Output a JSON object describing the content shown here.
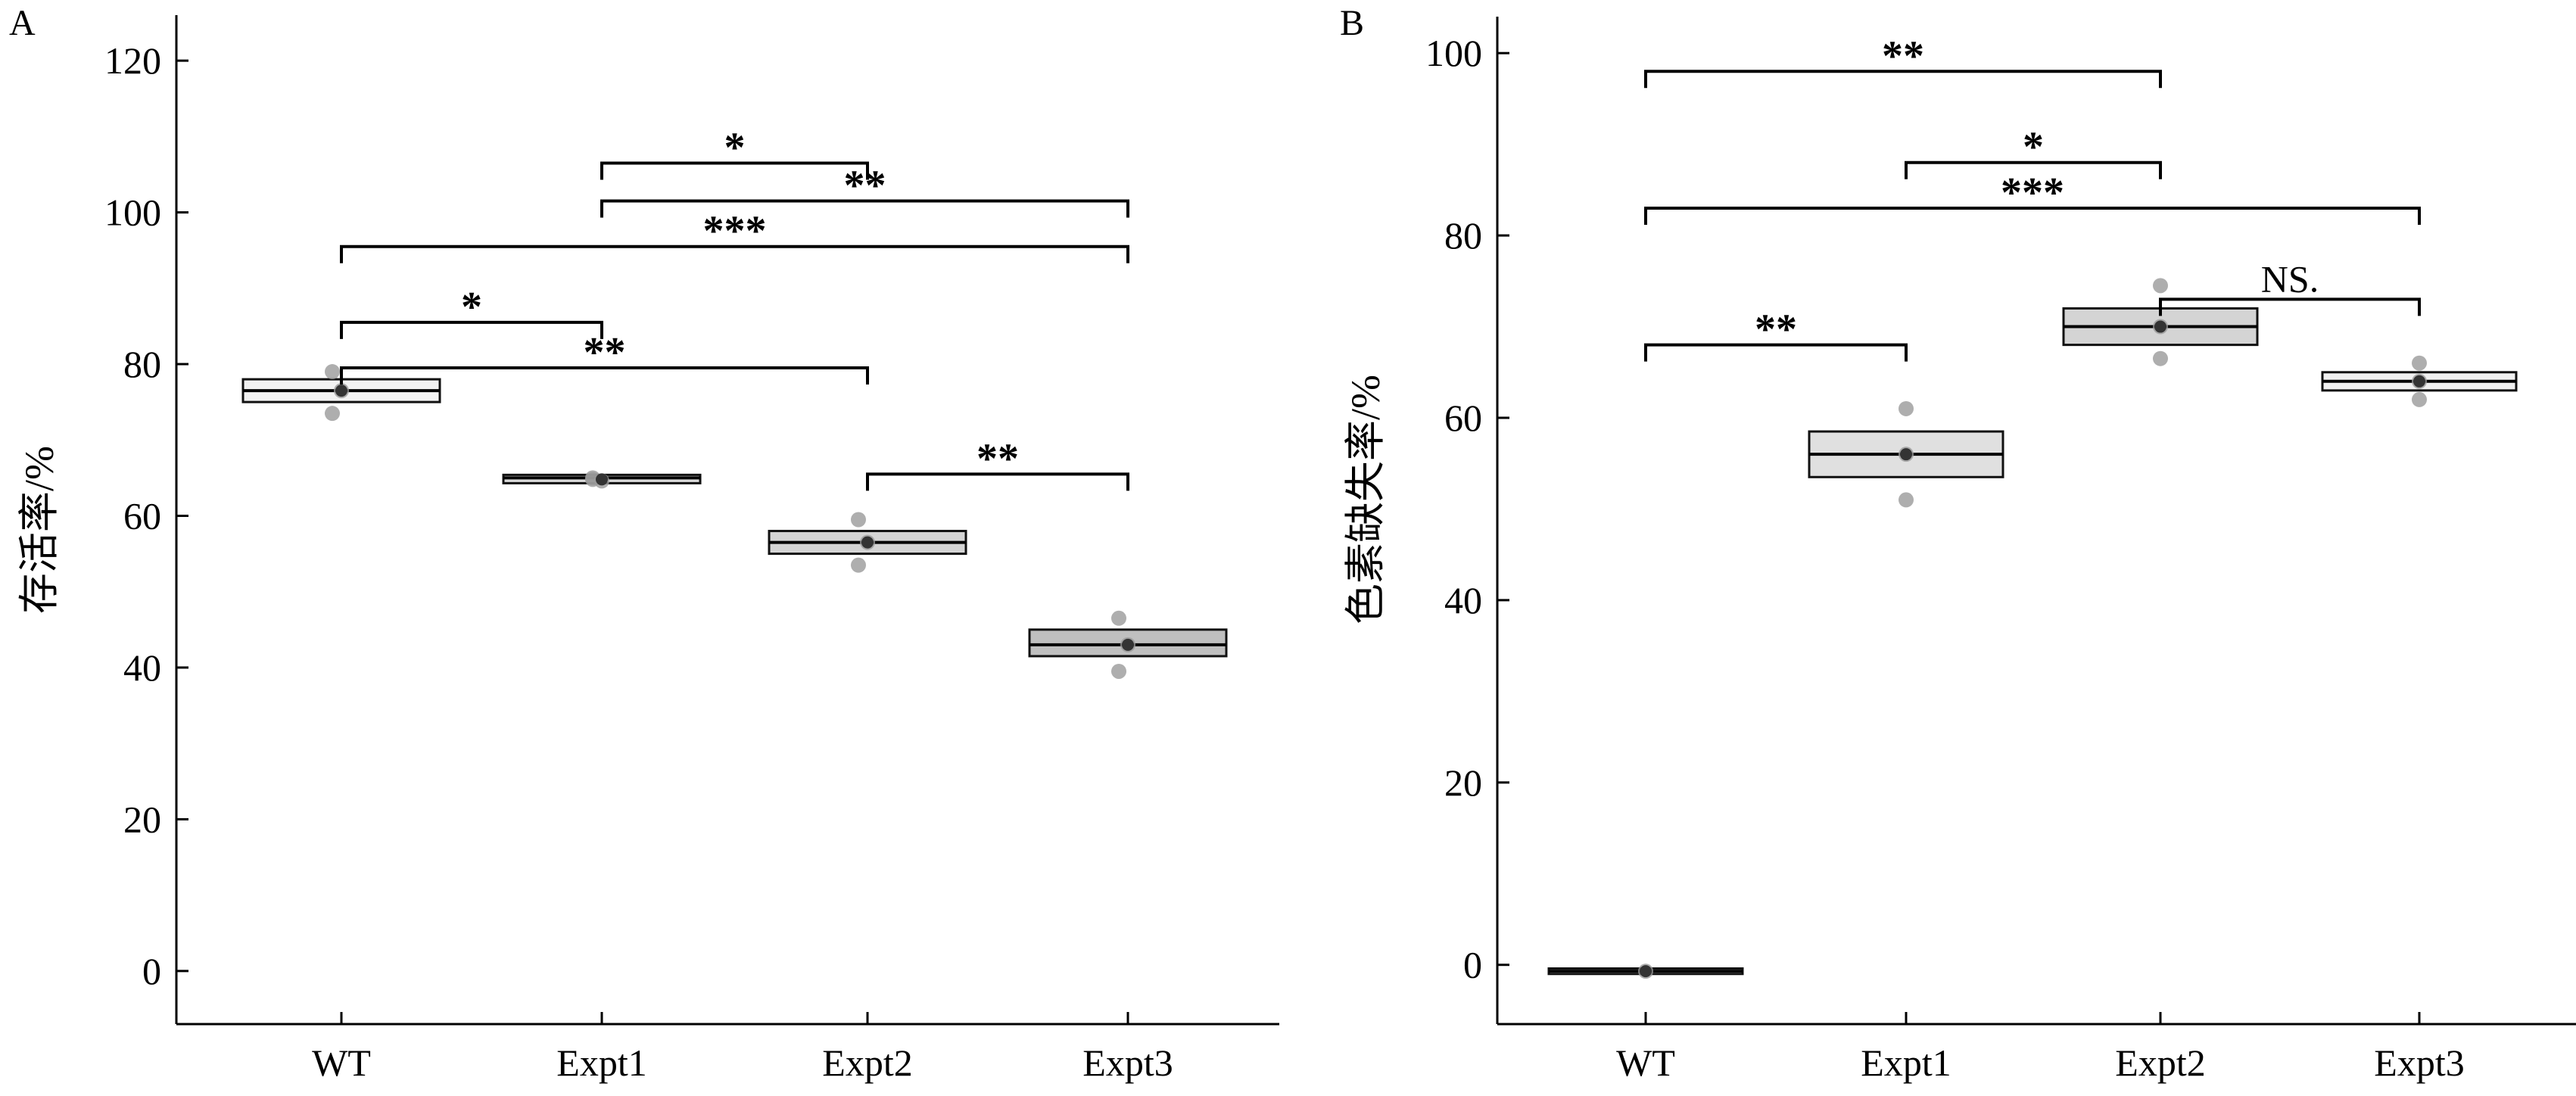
{
  "chart_data": [
    {
      "panel_label": "A",
      "type": "box",
      "ylabel": "存活率/%",
      "xlabel": "",
      "ylim": [
        -7,
        126
      ],
      "yticks": [
        0,
        20,
        40,
        60,
        80,
        100,
        120
      ],
      "categories": [
        "WT",
        "Expt1",
        "Expt2",
        "Expt3"
      ],
      "boxes": [
        {
          "category": "WT",
          "q1": 75.0,
          "median": 76.5,
          "q3": 78.0,
          "mean": 76.5,
          "points": [
            79.0,
            73.5,
            76.5
          ],
          "fill": "#f2f2f2"
        },
        {
          "category": "Expt1",
          "q1": 64.3,
          "median": 65.0,
          "q3": 65.4,
          "mean": 64.8,
          "points": [
            64.8,
            65.0,
            64.6
          ],
          "fill": "#d9d9d9"
        },
        {
          "category": "Expt2",
          "q1": 55.0,
          "median": 56.5,
          "q3": 58.0,
          "mean": 56.5,
          "points": [
            59.5,
            53.5,
            56.5
          ],
          "fill": "#d4d4d4"
        },
        {
          "category": "Expt3",
          "q1": 41.5,
          "median": 43.0,
          "q3": 45.0,
          "mean": 43.0,
          "points": [
            46.5,
            39.5,
            43.0
          ],
          "fill": "#bfbfbf"
        }
      ],
      "significance": [
        {
          "from": "Expt1",
          "to": "Expt2",
          "y": 106.5,
          "label": "*"
        },
        {
          "from": "Expt1",
          "to": "Expt3",
          "y": 101.5,
          "label": "**"
        },
        {
          "from": "WT",
          "to": "Expt3",
          "y": 95.5,
          "label": "***"
        },
        {
          "from": "WT",
          "to": "Expt1",
          "y": 85.5,
          "label": "*"
        },
        {
          "from": "WT",
          "to": "Expt2",
          "y": 79.5,
          "label": "**"
        },
        {
          "from": "Expt2",
          "to": "Expt3",
          "y": 65.5,
          "label": "**"
        }
      ]
    },
    {
      "panel_label": "B",
      "type": "box",
      "ylabel": "色素缺失率/%",
      "xlabel": "",
      "ylim": [
        -6.5,
        104
      ],
      "yticks": [
        0,
        20,
        40,
        60,
        80,
        100
      ],
      "categories": [
        "WT",
        "Expt1",
        "Expt2",
        "Expt3"
      ],
      "boxes": [
        {
          "category": "WT",
          "q1": -1.0,
          "median": -0.7,
          "q3": -0.4,
          "mean": -0.7,
          "points": [
            -0.7
          ],
          "fill": "#ffffff"
        },
        {
          "category": "Expt1",
          "q1": 53.5,
          "median": 56.0,
          "q3": 58.5,
          "mean": 56.0,
          "points": [
            61.0,
            51.0,
            56.0
          ],
          "fill": "#e0e0e0"
        },
        {
          "category": "Expt2",
          "q1": 68.0,
          "median": 70.0,
          "q3": 72.0,
          "mean": 70.0,
          "points": [
            74.5,
            66.5,
            70.0
          ],
          "fill": "#d4d4d4"
        },
        {
          "category": "Expt3",
          "q1": 63.0,
          "median": 64.0,
          "q3": 65.0,
          "mean": 64.0,
          "points": [
            66.0,
            62.0,
            64.0
          ],
          "fill": "#f0f0f0"
        }
      ],
      "significance": [
        {
          "from": "WT",
          "to": "Expt2",
          "y": 98.0,
          "label": "**"
        },
        {
          "from": "Expt1",
          "to": "Expt2",
          "y": 88.0,
          "label": "*"
        },
        {
          "from": "WT",
          "to": "Expt3",
          "y": 83.0,
          "label": "***"
        },
        {
          "from": "Expt2",
          "to": "Expt3",
          "y": 73.0,
          "label": "NS."
        },
        {
          "from": "WT",
          "to": "Expt1",
          "y": 68.0,
          "label": "**"
        }
      ]
    }
  ]
}
